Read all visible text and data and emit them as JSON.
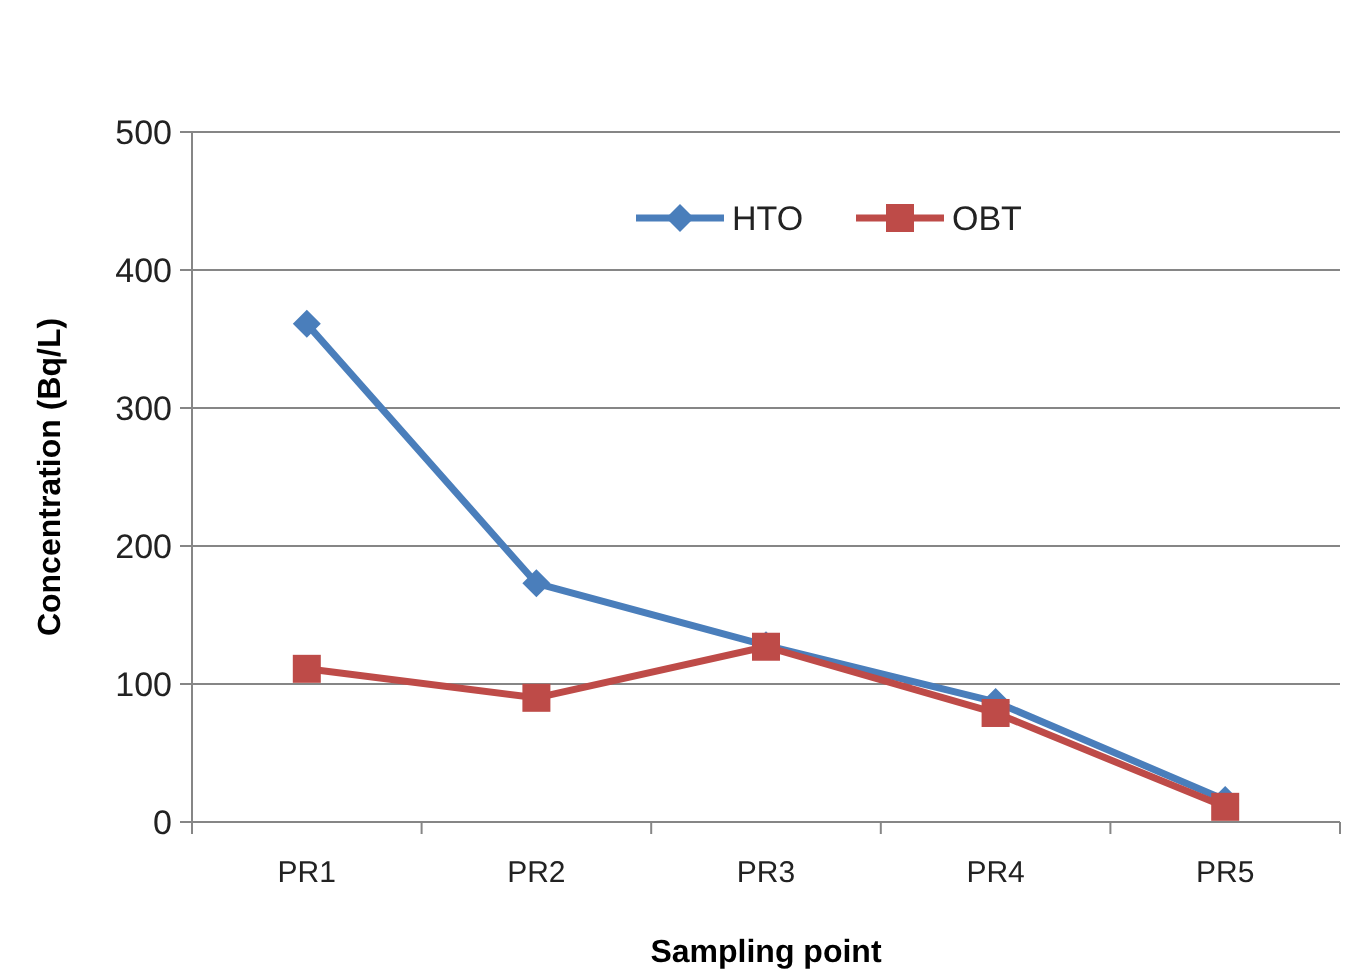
{
  "chart_data": {
    "type": "line",
    "xlabel": "Sampling point",
    "ylabel": "Concentration (Bq/L)",
    "categories": [
      "PR1",
      "PR2",
      "PR3",
      "PR4",
      "PR5"
    ],
    "series": [
      {
        "name": "HTO",
        "color": "#4a7ebb",
        "marker": "diamond",
        "values": [
          361,
          173,
          128,
          87,
          16
        ]
      },
      {
        "name": "OBT",
        "color": "#be4b48",
        "marker": "square",
        "values": [
          111,
          90,
          127,
          79,
          11
        ]
      }
    ],
    "ylim": [
      0,
      500
    ],
    "yticks": [
      0,
      100,
      200,
      300,
      400,
      500
    ],
    "grid": "y",
    "legend": "top"
  }
}
